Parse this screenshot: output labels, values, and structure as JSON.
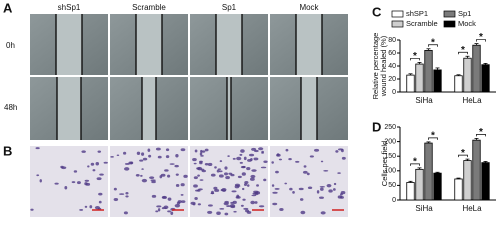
{
  "panels": {
    "A": "A",
    "B": "B",
    "columns": [
      "shSp1",
      "Scramble",
      "Sp1",
      "Mock"
    ],
    "rows": [
      "0h",
      "48h"
    ]
  },
  "chart_data": [
    {
      "type": "bar",
      "panel": "C",
      "ylabel": [
        "Relative percentage",
        "wound healed (%)"
      ],
      "categories": [
        "SiHa",
        "HeLa"
      ],
      "series": [
        {
          "name": "shSP1",
          "color": "#ffffff",
          "values": [
            26,
            25
          ],
          "errors": [
            2,
            1.5
          ]
        },
        {
          "name": "Scramble",
          "color": "#cfcfcf",
          "values": [
            43,
            52
          ],
          "errors": [
            2.5,
            3
          ]
        },
        {
          "name": "Sp1",
          "color": "#7a7a7a",
          "values": [
            64,
            72
          ],
          "errors": [
            2.5,
            2.5
          ]
        },
        {
          "name": "Mock",
          "color": "#000000",
          "values": [
            34,
            42
          ],
          "errors": [
            3,
            2
          ]
        }
      ],
      "significance": [
        "*",
        "*",
        "*",
        "*"
      ],
      "ylim": [
        0,
        80
      ],
      "yticks": [
        0,
        20,
        40,
        60,
        80
      ]
    },
    {
      "type": "bar",
      "panel": "D",
      "ylabel": [
        "Cells per field"
      ],
      "categories": [
        "SiHa",
        "HeLa"
      ],
      "series": [
        {
          "name": "shSP1",
          "color": "#ffffff",
          "values": [
            60,
            72
          ],
          "errors": [
            4,
            3
          ]
        },
        {
          "name": "Scramble",
          "color": "#cfcfcf",
          "values": [
            105,
            135
          ],
          "errors": [
            5,
            5
          ]
        },
        {
          "name": "Sp1",
          "color": "#7a7a7a",
          "values": [
            195,
            205
          ],
          "errors": [
            4,
            6
          ]
        },
        {
          "name": "Mock",
          "color": "#000000",
          "values": [
            92,
            128
          ],
          "errors": [
            3,
            4
          ]
        }
      ],
      "significance": [
        "*",
        "*",
        "*",
        "*"
      ],
      "ylim": [
        0,
        250
      ],
      "yticks": [
        0,
        50,
        100,
        150,
        200,
        250
      ]
    }
  ]
}
